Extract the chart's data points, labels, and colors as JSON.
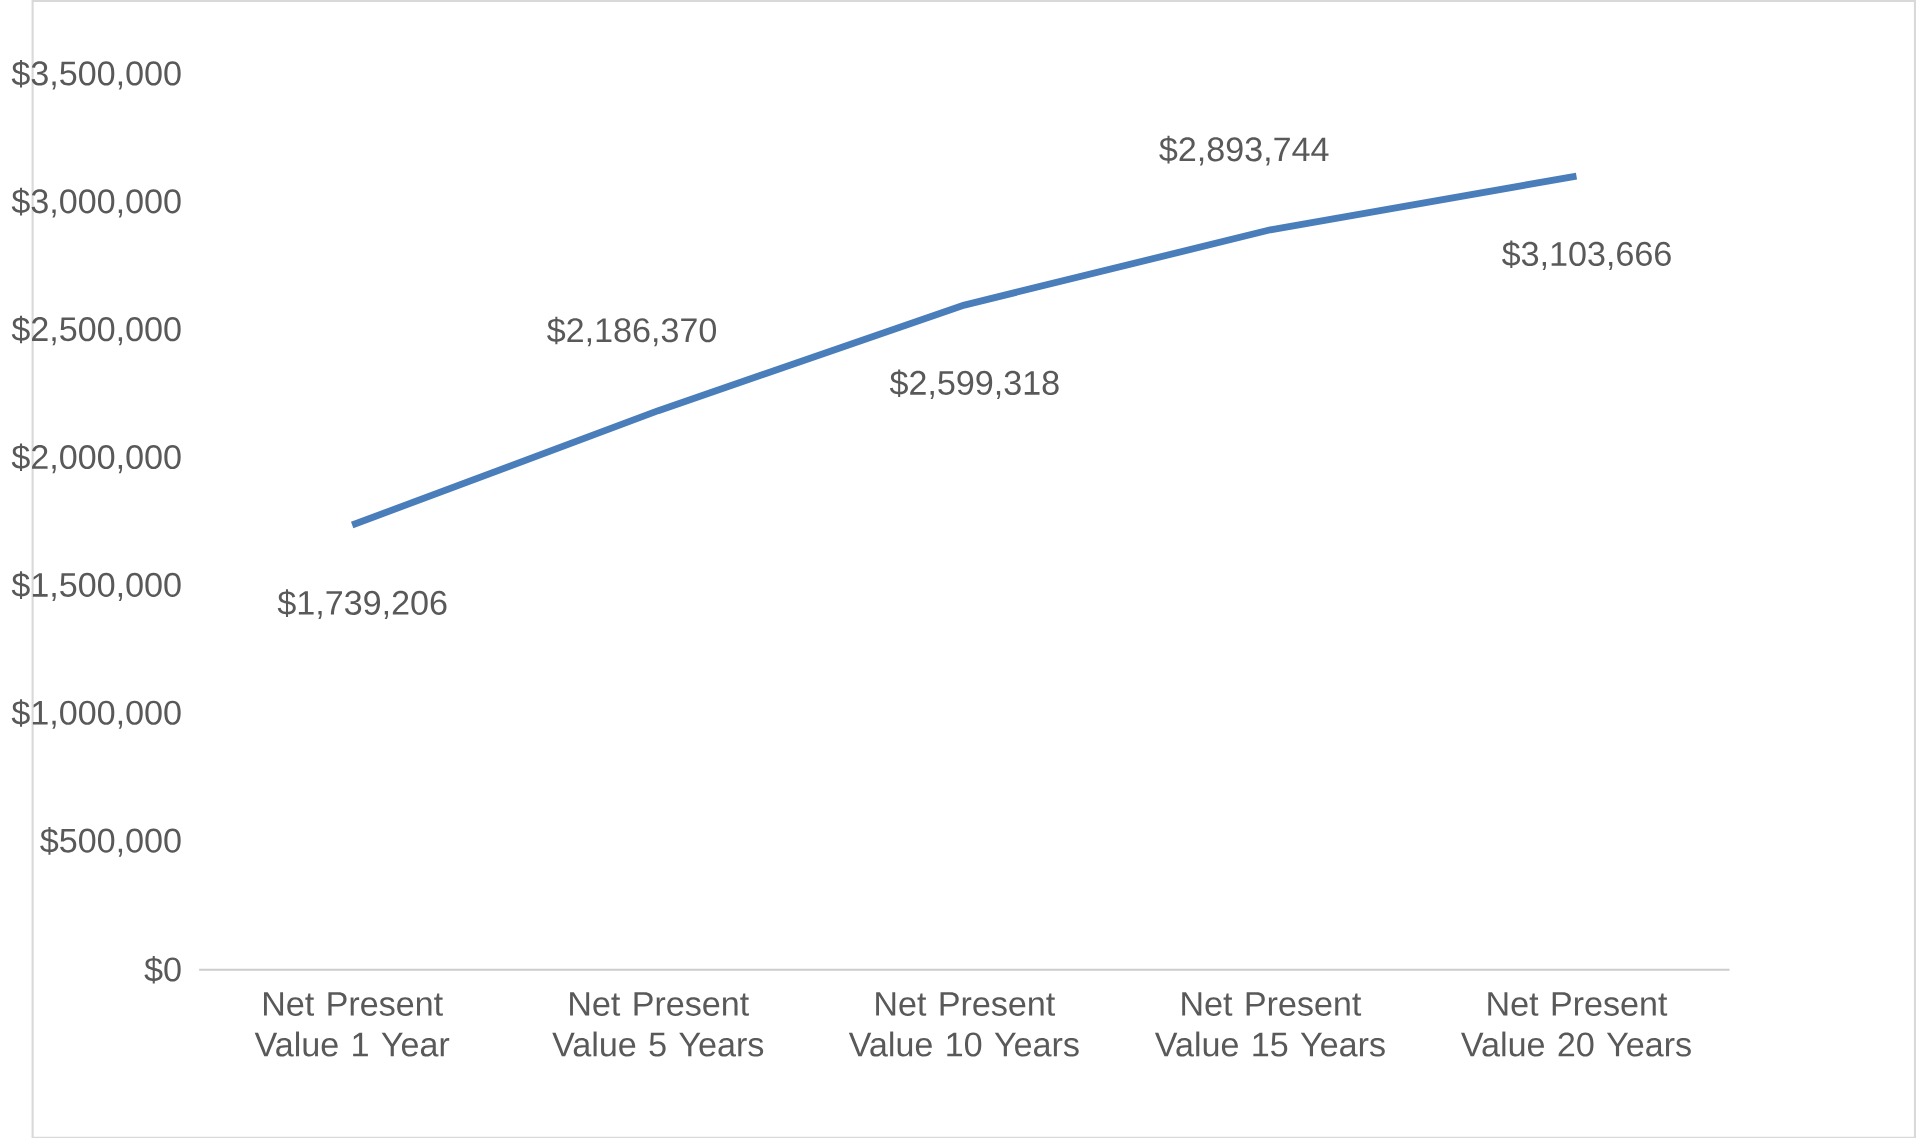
{
  "chart_data": {
    "type": "line",
    "categories": [
      "Net Present Value 1 Year",
      "Net Present Value 5 Years",
      "Net Present Value 10 Years",
      "Net Present Value 15 Years",
      "Net Present Value 20 Years"
    ],
    "series": [
      {
        "color": "#4a7ebb",
        "values": [
          1739206,
          2186370,
          2599318,
          2893744,
          3103666
        ],
        "value_labels": [
          "$1,739,206",
          "$2,186,370",
          "$2,599,318",
          "$2,893,744",
          "$3,103,666"
        ]
      }
    ],
    "ylim": [
      0,
      3500000
    ],
    "yticks": [
      {
        "value": 0,
        "label": "$0"
      },
      {
        "value": 500000,
        "label": "$500,000"
      },
      {
        "value": 1000000,
        "label": "$1,000,000"
      },
      {
        "value": 1500000,
        "label": "$1,500,000"
      },
      {
        "value": 2000000,
        "label": "$2,000,000"
      },
      {
        "value": 2500000,
        "label": "$2,500,000"
      },
      {
        "value": 3000000,
        "label": "$3,000,000"
      },
      {
        "value": 3500000,
        "label": "$3,500,000"
      }
    ],
    "marker": "none",
    "line_style": "solid"
  }
}
